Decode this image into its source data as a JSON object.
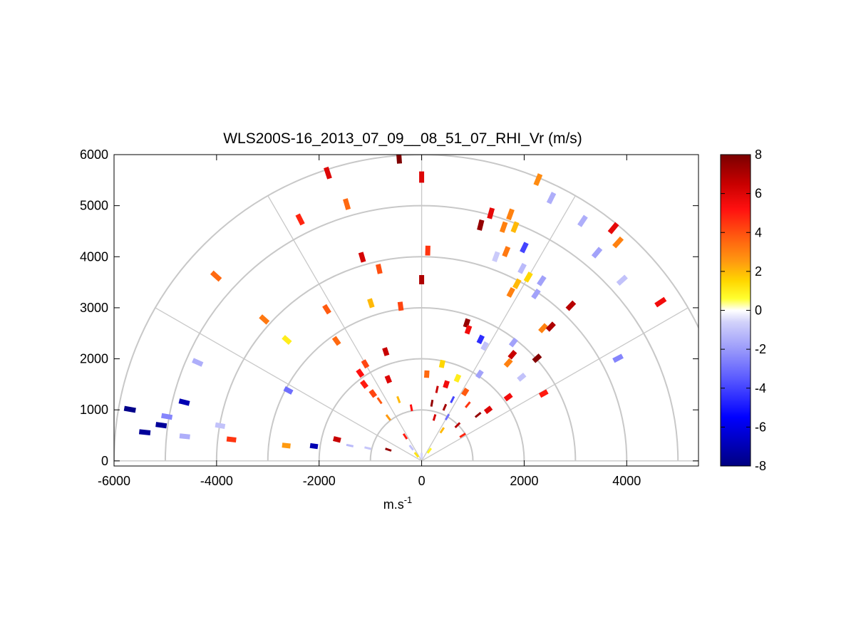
{
  "chart_data": {
    "type": "scatter",
    "title": "WLS200S-16_2013_07_09__08_51_07_RHI_Vr (m/s)",
    "xlabel": "m.s",
    "xlabel_superscript": "-1",
    "ylabel": "",
    "xlim": [
      -6000,
      5400
    ],
    "ylim": [
      -100,
      6000
    ],
    "xticks": [
      -6000,
      -4000,
      -2000,
      0,
      2000,
      4000
    ],
    "yticks": [
      0,
      1000,
      2000,
      3000,
      4000,
      5000,
      6000
    ],
    "xtick_labels": [
      "-6000",
      "-4000",
      "-2000",
      "0",
      "2000",
      "4000"
    ],
    "ytick_labels": [
      "0",
      "1000",
      "2000",
      "3000",
      "4000",
      "5000",
      "6000"
    ],
    "polar_grid": {
      "range_rings": [
        1000,
        2000,
        3000,
        4000,
        5000,
        6000
      ],
      "spokes_deg": [
        0,
        30,
        60,
        90,
        120,
        150,
        180
      ]
    },
    "colorbar": {
      "min": -8,
      "max": 8,
      "ticks": [
        -8,
        -6,
        -4,
        -2,
        0,
        2,
        4,
        6,
        8
      ],
      "tick_labels": [
        "-8",
        "-6",
        "-4",
        "-2",
        "0",
        "2",
        "4",
        "6",
        "8"
      ]
    },
    "series": [
      {
        "values": [
          {
            "x": -2370,
            "y": 4730,
            "v": 4.8
          },
          {
            "x": -1850,
            "y": 2970,
            "v": 3.8
          },
          {
            "x": -1660,
            "y": 2350,
            "v": 3.5
          },
          {
            "x": -1200,
            "y": 1720,
            "v": 5.2
          },
          {
            "x": -1120,
            "y": 1500,
            "v": 5.0
          },
          {
            "x": -950,
            "y": 1320,
            "v": 4.2
          },
          {
            "x": -820,
            "y": 1180,
            "v": 3.8
          },
          {
            "x": -650,
            "y": 850,
            "v": 2.5
          },
          {
            "x": -320,
            "y": 480,
            "v": 5.0
          },
          {
            "x": -440,
            "y": 5940,
            "v": 7.9
          },
          {
            "x": -1830,
            "y": 5640,
            "v": 6.0
          },
          {
            "x": 0,
            "y": 5560,
            "v": 6.0
          },
          {
            "x": -1460,
            "y": 5030,
            "v": 3.5
          },
          {
            "x": 120,
            "y": 4120,
            "v": 4.5
          },
          {
            "x": -1160,
            "y": 3990,
            "v": 6.2
          },
          {
            "x": -830,
            "y": 3760,
            "v": 4.0
          },
          {
            "x": 0,
            "y": 3550,
            "v": 7.0
          },
          {
            "x": -4010,
            "y": 3620,
            "v": 3.5
          },
          {
            "x": -3070,
            "y": 2770,
            "v": 3.2
          },
          {
            "x": -2630,
            "y": 2370,
            "v": 1.0
          },
          {
            "x": -990,
            "y": 3090,
            "v": 2.0
          },
          {
            "x": -410,
            "y": 3030,
            "v": 4.2
          },
          {
            "x": -700,
            "y": 2140,
            "v": 6.5
          },
          {
            "x": -4370,
            "y": 1930,
            "v": -1.5
          },
          {
            "x": -2600,
            "y": 1380,
            "v": -3.0
          },
          {
            "x": -3710,
            "y": 420,
            "v": 4.5
          },
          {
            "x": -2640,
            "y": 300,
            "v": 2.5
          },
          {
            "x": -3930,
            "y": 690,
            "v": -1.0
          },
          {
            "x": -4620,
            "y": 480,
            "v": -1.5
          },
          {
            "x": -4630,
            "y": 1150,
            "v": -7.0
          },
          {
            "x": -4970,
            "y": 870,
            "v": -2.5
          },
          {
            "x": -5080,
            "y": 700,
            "v": -7.5
          },
          {
            "x": -5400,
            "y": 560,
            "v": -7.5
          },
          {
            "x": -5690,
            "y": 1010,
            "v": -7.8
          },
          {
            "x": -2100,
            "y": 290,
            "v": -7.0
          },
          {
            "x": 2270,
            "y": 5510,
            "v": 2.8
          },
          {
            "x": 2530,
            "y": 5150,
            "v": -1.5
          },
          {
            "x": 1350,
            "y": 4850,
            "v": 5.8
          },
          {
            "x": 1730,
            "y": 4830,
            "v": 3.0
          },
          {
            "x": 1150,
            "y": 4620,
            "v": 7.5
          },
          {
            "x": 1600,
            "y": 4580,
            "v": 3.0
          },
          {
            "x": 1820,
            "y": 4580,
            "v": 2.0
          },
          {
            "x": 1650,
            "y": 4100,
            "v": 3.2
          },
          {
            "x": 1450,
            "y": 4000,
            "v": -0.8
          },
          {
            "x": 2000,
            "y": 4180,
            "v": -4.0
          },
          {
            "x": 1960,
            "y": 3770,
            "v": -1.2
          },
          {
            "x": 2080,
            "y": 3600,
            "v": 1.5
          },
          {
            "x": 1860,
            "y": 3470,
            "v": 2.0
          },
          {
            "x": 1740,
            "y": 3300,
            "v": 3.0
          },
          {
            "x": 2340,
            "y": 3530,
            "v": -1.8
          },
          {
            "x": 2230,
            "y": 3270,
            "v": -1.8
          },
          {
            "x": 3140,
            "y": 4700,
            "v": -1.5
          },
          {
            "x": 3740,
            "y": 4560,
            "v": 5.8
          },
          {
            "x": 3830,
            "y": 4280,
            "v": 3.0
          },
          {
            "x": 3420,
            "y": 4080,
            "v": -1.8
          },
          {
            "x": 3910,
            "y": 3540,
            "v": -1.0
          },
          {
            "x": 4660,
            "y": 3110,
            "v": 5.5
          },
          {
            "x": 3830,
            "y": 2010,
            "v": -2.5
          },
          {
            "x": 2910,
            "y": 3040,
            "v": 6.8
          },
          {
            "x": 2370,
            "y": 2600,
            "v": 3.0
          },
          {
            "x": 2520,
            "y": 2630,
            "v": 7.0
          },
          {
            "x": 2250,
            "y": 2010,
            "v": 7.8
          },
          {
            "x": 880,
            "y": 2700,
            "v": 7.5
          },
          {
            "x": 910,
            "y": 2570,
            "v": 5.5
          },
          {
            "x": 1150,
            "y": 2380,
            "v": -4.5
          },
          {
            "x": 1230,
            "y": 2250,
            "v": -1.0
          },
          {
            "x": 1790,
            "y": 2320,
            "v": -1.8
          },
          {
            "x": 1770,
            "y": 2080,
            "v": 6.5
          },
          {
            "x": 1690,
            "y": 1920,
            "v": 3.0
          },
          {
            "x": 1950,
            "y": 1640,
            "v": -1.0
          },
          {
            "x": 2380,
            "y": 1320,
            "v": 5.0
          },
          {
            "x": 1690,
            "y": 1250,
            "v": 5.5
          },
          {
            "x": 1130,
            "y": 1700,
            "v": -1.8
          },
          {
            "x": 700,
            "y": 1620,
            "v": 1.0
          },
          {
            "x": 400,
            "y": 1900,
            "v": 1.5
          },
          {
            "x": 300,
            "y": 1400,
            "v": 6.5
          },
          {
            "x": 200,
            "y": 1130,
            "v": 7.5
          },
          {
            "x": -200,
            "y": 1040,
            "v": 5.2
          },
          {
            "x": -450,
            "y": 1200,
            "v": 2.0
          },
          {
            "x": 500,
            "y": 860,
            "v": -3.0
          },
          {
            "x": 150,
            "y": 200,
            "v": 0.8
          },
          {
            "x": 0,
            "y": 100,
            "v": -0.6
          },
          {
            "x": -100,
            "y": 120,
            "v": 1.2
          },
          {
            "x": -200,
            "y": 260,
            "v": -1.0
          },
          {
            "x": -650,
            "y": 220,
            "v": 7.5
          },
          {
            "x": -1400,
            "y": 300,
            "v": -1.2
          },
          {
            "x": -1050,
            "y": 250,
            "v": -0.9
          },
          {
            "x": -1650,
            "y": 420,
            "v": 6.5
          },
          {
            "x": 700,
            "y": 700,
            "v": 6.8
          },
          {
            "x": 1100,
            "y": 900,
            "v": 7.5
          },
          {
            "x": 1300,
            "y": 1000,
            "v": 6.0
          },
          {
            "x": 900,
            "y": 1100,
            "v": 4.5
          },
          {
            "x": 600,
            "y": 1200,
            "v": -4.0
          },
          {
            "x": 400,
            "y": 600,
            "v": 2.0
          },
          {
            "x": 800,
            "y": 500,
            "v": 4.8
          },
          {
            "x": 250,
            "y": 850,
            "v": 6.2
          },
          {
            "x": 450,
            "y": 1050,
            "v": 7.2
          },
          {
            "x": 100,
            "y": 1700,
            "v": 3.5
          },
          {
            "x": 480,
            "y": 1500,
            "v": 5.5
          },
          {
            "x": 850,
            "y": 1350,
            "v": 3.8
          },
          {
            "x": -650,
            "y": 1600,
            "v": 6.0
          },
          {
            "x": -1100,
            "y": 1900,
            "v": 4.2
          }
        ]
      }
    ],
    "colormap": [
      {
        "v": -8,
        "color": "#000080"
      },
      {
        "v": -5.5,
        "color": "#0000ff"
      },
      {
        "v": -3.5,
        "color": "#5a5aff"
      },
      {
        "v": -2,
        "color": "#9a9afa"
      },
      {
        "v": -0.6,
        "color": "#d2d2fa"
      },
      {
        "v": 0,
        "color": "#ffffff"
      },
      {
        "v": 0.6,
        "color": "#ffff30"
      },
      {
        "v": 1.5,
        "color": "#ffd700"
      },
      {
        "v": 2.5,
        "color": "#ff9a10"
      },
      {
        "v": 3.8,
        "color": "#ff5a10"
      },
      {
        "v": 5.2,
        "color": "#ff1010"
      },
      {
        "v": 6.5,
        "color": "#c80000"
      },
      {
        "v": 8,
        "color": "#7a0000"
      }
    ]
  }
}
